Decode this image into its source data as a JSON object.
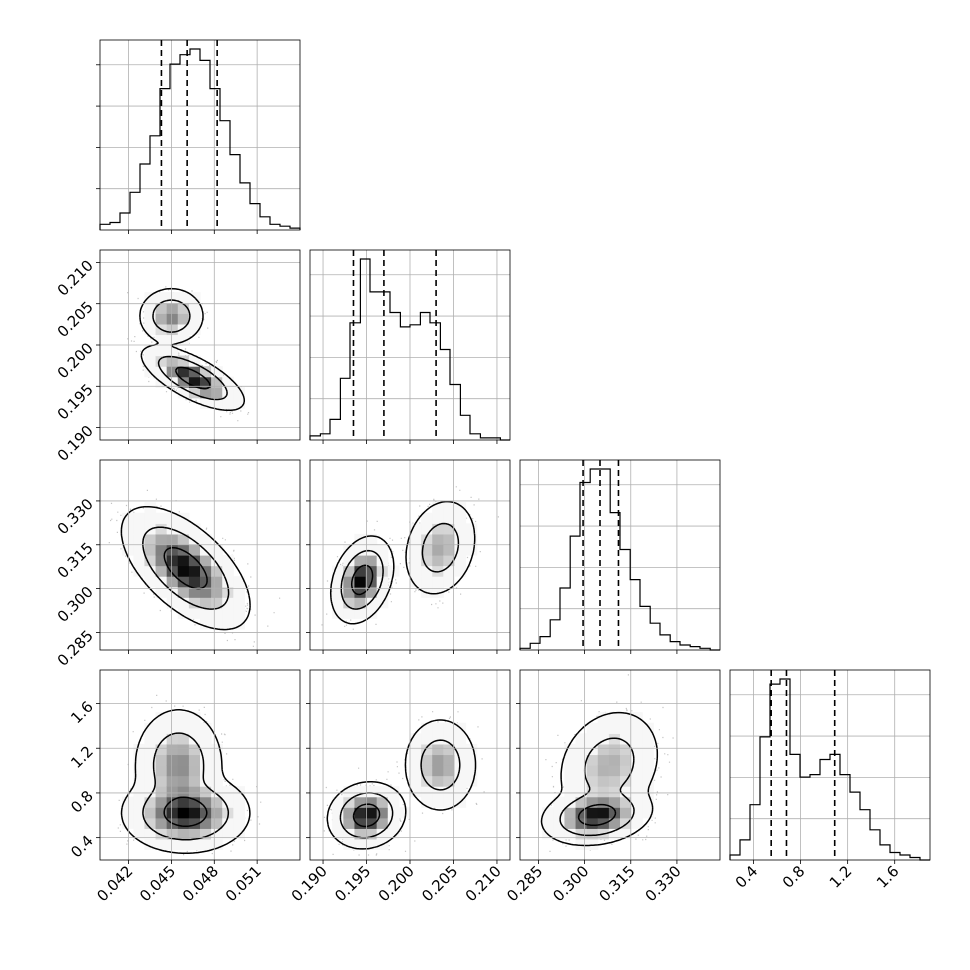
{
  "chart_data": {
    "type": "corner",
    "grid": true,
    "parameters": [
      {
        "range": [
          0.04,
          0.054
        ],
        "ticks": [
          0.042,
          0.045,
          0.048,
          0.051
        ],
        "tick_labels": [
          "0.042",
          "0.045",
          "0.048",
          "0.051"
        ],
        "quantiles": [
          0.0443,
          0.0461,
          0.0482
        ],
        "histogram": {
          "edges": [
            0.04,
            0.0407,
            0.0414,
            0.0421,
            0.0428,
            0.0435,
            0.0442,
            0.0449,
            0.0456,
            0.0463,
            0.047,
            0.0477,
            0.0484,
            0.0491,
            0.0498,
            0.0505,
            0.0512,
            0.0519,
            0.0526,
            0.0533,
            0.054
          ],
          "counts": [
            3,
            4,
            9,
            20,
            35,
            50,
            75,
            88,
            93,
            96,
            90,
            75,
            58,
            40,
            25,
            14,
            7,
            3,
            2,
            1
          ]
        }
      },
      {
        "range": [
          0.1885,
          0.2115
        ],
        "ticks": [
          0.19,
          0.195,
          0.2,
          0.205,
          0.21
        ],
        "tick_labels": [
          "0.190",
          "0.195",
          "0.200",
          "0.205",
          "0.210"
        ],
        "quantiles": [
          0.1935,
          0.197,
          0.203
        ],
        "histogram": {
          "edges": [
            0.1885,
            0.1897,
            0.1908,
            0.192,
            0.1931,
            0.1943,
            0.1954,
            0.1966,
            0.1977,
            0.1989,
            0.2,
            0.2012,
            0.2023,
            0.2035,
            0.2046,
            0.2058,
            0.2069,
            0.2081,
            0.2092,
            0.2104,
            0.2115
          ],
          "counts": [
            2,
            3,
            10,
            30,
            57,
            88,
            72,
            72,
            62,
            55,
            56,
            62,
            57,
            44,
            27,
            12,
            3,
            1,
            1,
            0
          ]
        }
      },
      {
        "range": [
          0.279,
          0.344
        ],
        "ticks": [
          0.285,
          0.3,
          0.315,
          0.33
        ],
        "tick_labels": [
          "0.285",
          "0.300",
          "0.315",
          "0.330"
        ],
        "quantiles": [
          0.2995,
          0.305,
          0.311
        ],
        "histogram": {
          "edges": [
            0.279,
            0.2823,
            0.2855,
            0.2888,
            0.292,
            0.2953,
            0.2985,
            0.3018,
            0.305,
            0.3083,
            0.3115,
            0.3148,
            0.318,
            0.3213,
            0.3245,
            0.3278,
            0.331,
            0.3343,
            0.3375,
            0.3408,
            0.344
          ],
          "counts": [
            1,
            4,
            8,
            18,
            37,
            68,
            100,
            108,
            108,
            82,
            60,
            42,
            26,
            16,
            9,
            5,
            3,
            2,
            1,
            0
          ]
        }
      },
      {
        "range": [
          0.2,
          1.9
        ],
        "ticks": [
          0.4,
          0.8,
          1.2,
          1.6
        ],
        "tick_labels": [
          "0.4",
          "0.8",
          "1.2",
          "1.6"
        ],
        "quantiles": [
          0.55,
          0.68,
          1.09
        ],
        "histogram": {
          "edges": [
            0.2,
            0.285,
            0.37,
            0.455,
            0.54,
            0.625,
            0.71,
            0.795,
            0.88,
            0.965,
            1.05,
            1.135,
            1.22,
            1.305,
            1.39,
            1.475,
            1.56,
            1.645,
            1.73,
            1.815,
            1.9
          ],
          "counts": [
            2,
            8,
            22,
            49,
            70,
            72,
            42,
            33,
            34,
            40,
            42,
            34,
            27,
            20,
            12,
            6,
            3,
            2,
            1,
            0
          ]
        }
      }
    ],
    "panels_2d": [
      {
        "x": 0,
        "y": 1,
        "modes": [
          {
            "x": 0.045,
            "y": 0.2035,
            "sx": 0.0008,
            "sy": 0.0012,
            "rho": 0.0,
            "weight": 0.3
          },
          {
            "x": 0.0465,
            "y": 0.196,
            "sx": 0.0012,
            "sy": 0.0013,
            "rho": -0.7,
            "weight": 0.7
          }
        ],
        "contour_levels": [
          1.0,
          2.0,
          3.0
        ]
      },
      {
        "x": 0,
        "y": 2,
        "modes": [
          {
            "x": 0.046,
            "y": 0.307,
            "sx": 0.0015,
            "sy": 0.007,
            "rho": -0.6,
            "weight": 1.0
          }
        ],
        "contour_levels": [
          1.0,
          2.0,
          3.0
        ]
      },
      {
        "x": 1,
        "y": 2,
        "modes": [
          {
            "x": 0.1945,
            "y": 0.303,
            "sx": 0.0012,
            "sy": 0.005,
            "rho": 0.3,
            "weight": 0.65
          },
          {
            "x": 0.2035,
            "y": 0.314,
            "sx": 0.0015,
            "sy": 0.006,
            "rho": 0.2,
            "weight": 0.35
          }
        ],
        "contour_levels": [
          1.0,
          2.0,
          3.0
        ]
      },
      {
        "x": 0,
        "y": 3,
        "modes": [
          {
            "x": 0.046,
            "y": 0.62,
            "sx": 0.0015,
            "sy": 0.12,
            "rho": 0.0,
            "weight": 0.65
          },
          {
            "x": 0.0455,
            "y": 1.05,
            "sx": 0.0011,
            "sy": 0.18,
            "rho": 0.0,
            "weight": 0.35
          }
        ],
        "contour_levels": [
          1.0,
          2.0,
          3.0
        ]
      },
      {
        "x": 1,
        "y": 3,
        "modes": [
          {
            "x": 0.195,
            "y": 0.6,
            "sx": 0.0015,
            "sy": 0.1,
            "rho": 0.1,
            "weight": 0.62
          },
          {
            "x": 0.2035,
            "y": 1.05,
            "sx": 0.0015,
            "sy": 0.15,
            "rho": 0.0,
            "weight": 0.38
          }
        ],
        "contour_levels": [
          1.0,
          2.0,
          3.0
        ]
      },
      {
        "x": 2,
        "y": 3,
        "modes": [
          {
            "x": 0.304,
            "y": 0.6,
            "sx": 0.006,
            "sy": 0.09,
            "rho": 0.2,
            "weight": 0.6
          },
          {
            "x": 0.308,
            "y": 1.05,
            "sx": 0.006,
            "sy": 0.18,
            "rho": 0.2,
            "weight": 0.4
          }
        ],
        "contour_levels": [
          1.0,
          2.0,
          3.0
        ]
      }
    ],
    "colors": {
      "ink": "#000000",
      "grid": "#b0b0b0",
      "scatter": "#555555"
    }
  }
}
